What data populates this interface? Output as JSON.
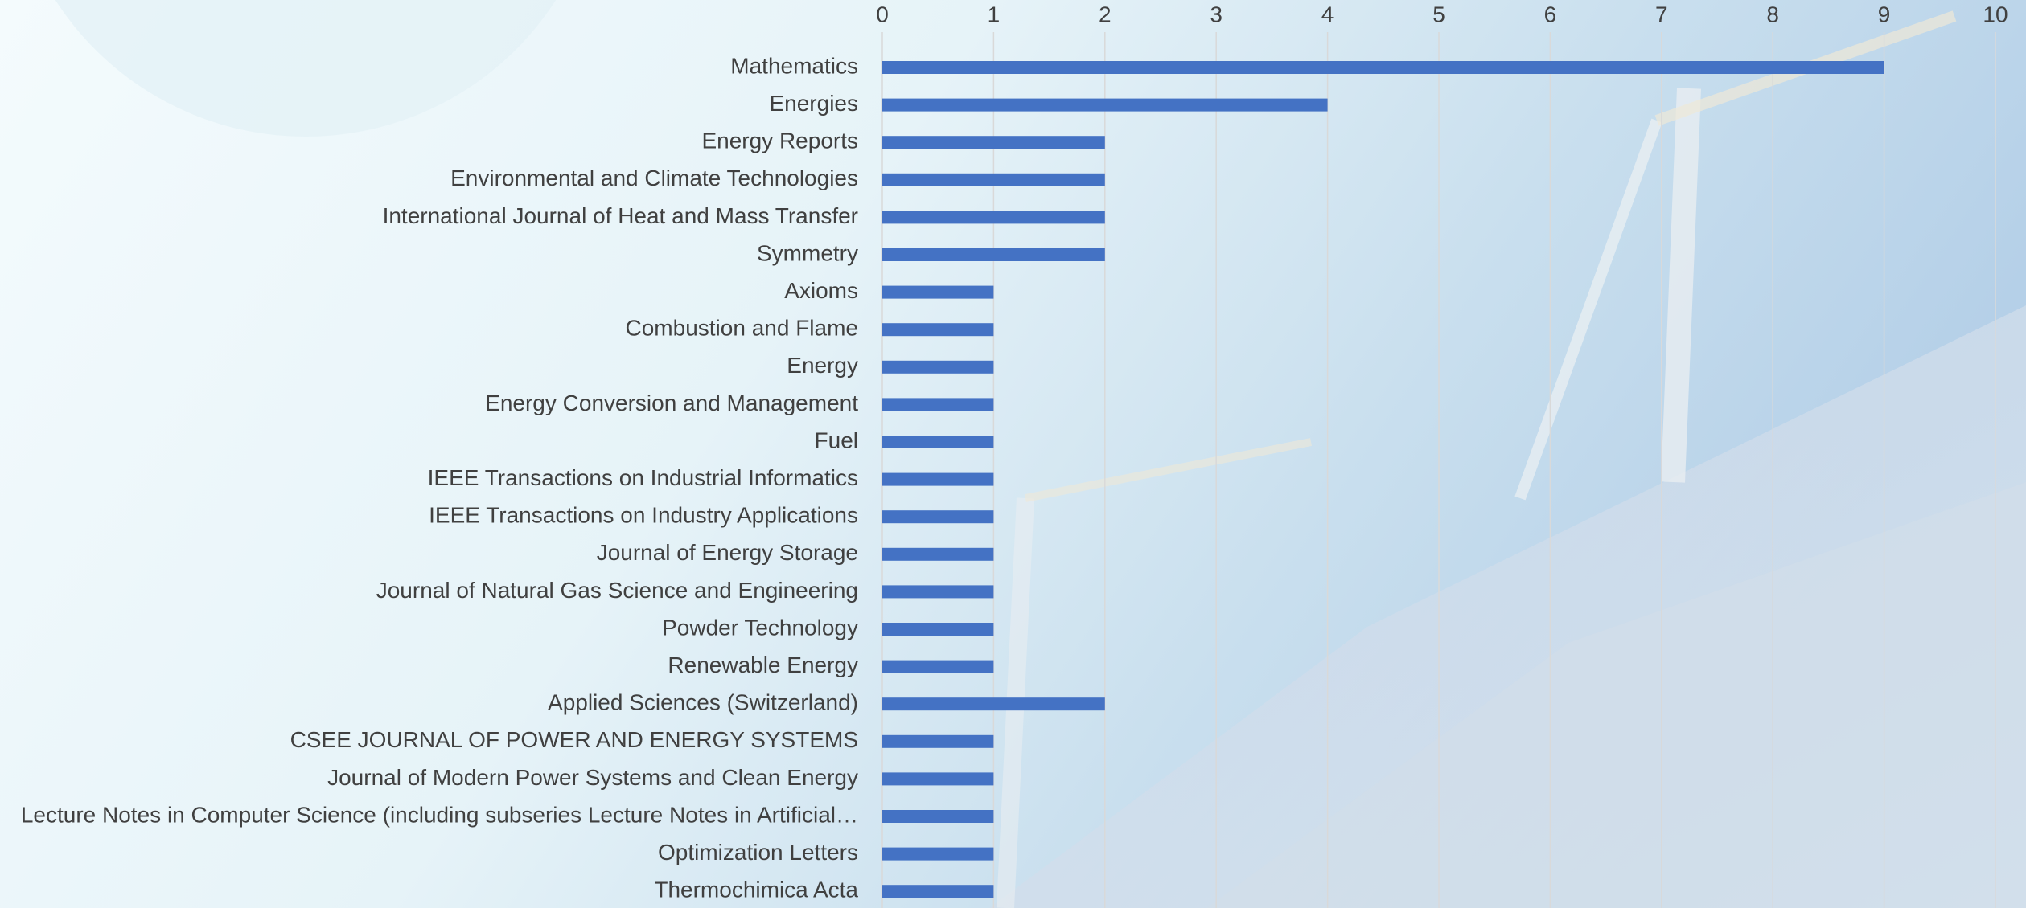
{
  "chart_data": {
    "type": "hbar",
    "categories": [
      "Mathematics",
      "Energies",
      "Energy Reports",
      "Environmental and Climate Technologies",
      "International Journal of Heat and Mass Transfer",
      "Symmetry",
      "Axioms",
      "Combustion and Flame",
      "Energy",
      "Energy Conversion and Management",
      "Fuel",
      "IEEE Transactions on Industrial Informatics",
      "IEEE Transactions on Industry Applications",
      "Journal of Energy Storage",
      "Journal of Natural Gas Science and Engineering",
      "Powder Technology",
      "Renewable Energy",
      "Applied Sciences (Switzerland)",
      "CSEE JOURNAL OF POWER AND ENERGY SYSTEMS",
      "Journal of Modern Power Systems and Clean Energy",
      "Lecture Notes in Computer Science (including subseries Lecture Notes in Artificial…",
      "Optimization Letters",
      "Thermochimica Acta"
    ],
    "values": [
      9,
      4,
      2,
      2,
      2,
      2,
      1,
      1,
      1,
      1,
      1,
      1,
      1,
      1,
      1,
      1,
      1,
      2,
      1,
      1,
      1,
      1,
      1
    ],
    "color": "#4472c4",
    "xlim": [
      0,
      10
    ],
    "xticks": [
      0,
      1,
      2,
      3,
      4,
      5,
      6,
      7,
      8,
      9,
      10
    ],
    "grid": true
  }
}
